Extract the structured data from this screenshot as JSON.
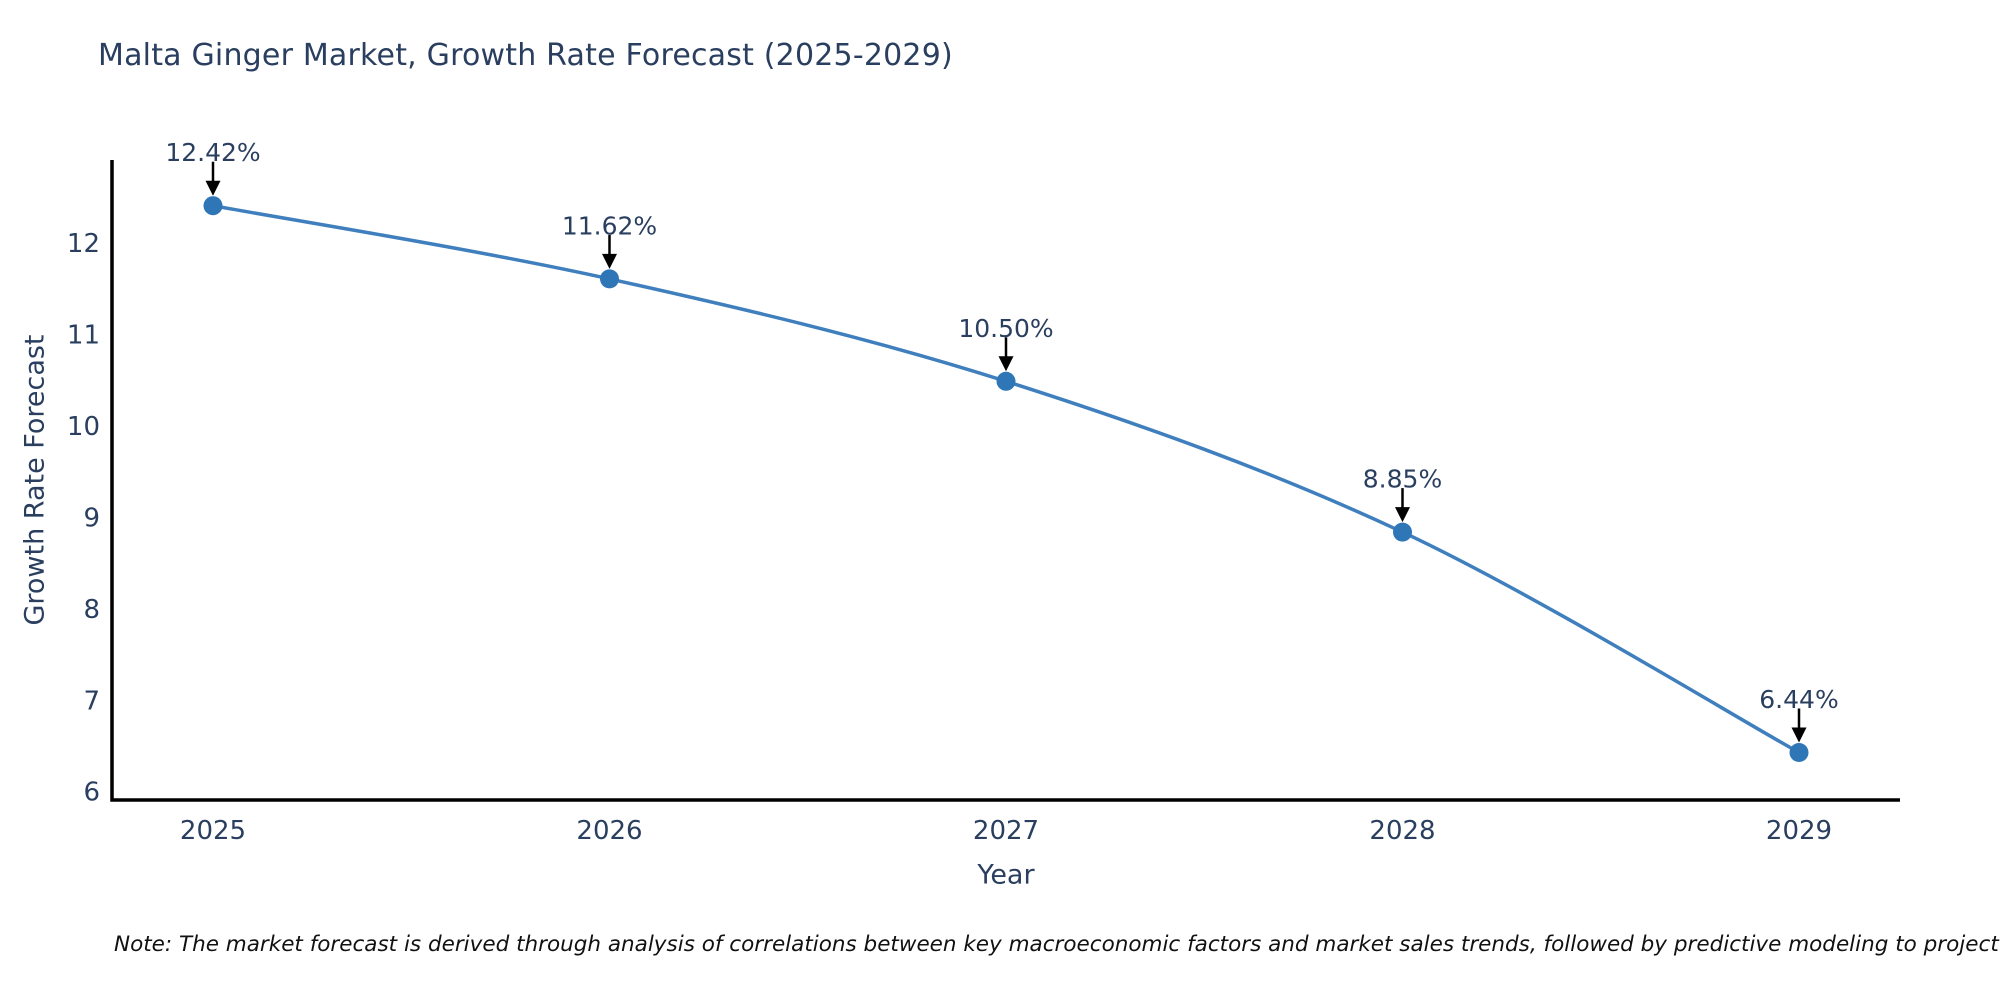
{
  "note": "Note: The market forecast is derived through analysis of correlations between key macroeconomic factors and market sales trends, followed by predictive modeling to project future sales",
  "colors": {
    "background": "#ffffff",
    "text": "#2a3f5f",
    "axis": "#000000",
    "arrow": "#000000",
    "line": "#3f7fbe",
    "marker": "#2f76b6"
  },
  "chart_data": {
    "type": "line",
    "title": "Malta Ginger Market, Growth Rate Forecast (2025-2029)",
    "xlabel": "Year",
    "ylabel": "Growth Rate Forecast",
    "x": [
      "2025",
      "2026",
      "2027",
      "2028",
      "2029"
    ],
    "values": [
      12.42,
      11.62,
      10.5,
      8.85,
      6.44
    ],
    "point_labels": [
      "12.42%",
      "11.62%",
      "10.50%",
      "8.85%",
      "6.44%"
    ],
    "yticks": [
      6,
      7,
      8,
      9,
      10,
      11,
      12
    ],
    "ylim": [
      5.92,
      12.92
    ],
    "grid": false,
    "legend": false,
    "line_shape": "spline",
    "annotation_style": "arrow-down-to-point"
  }
}
